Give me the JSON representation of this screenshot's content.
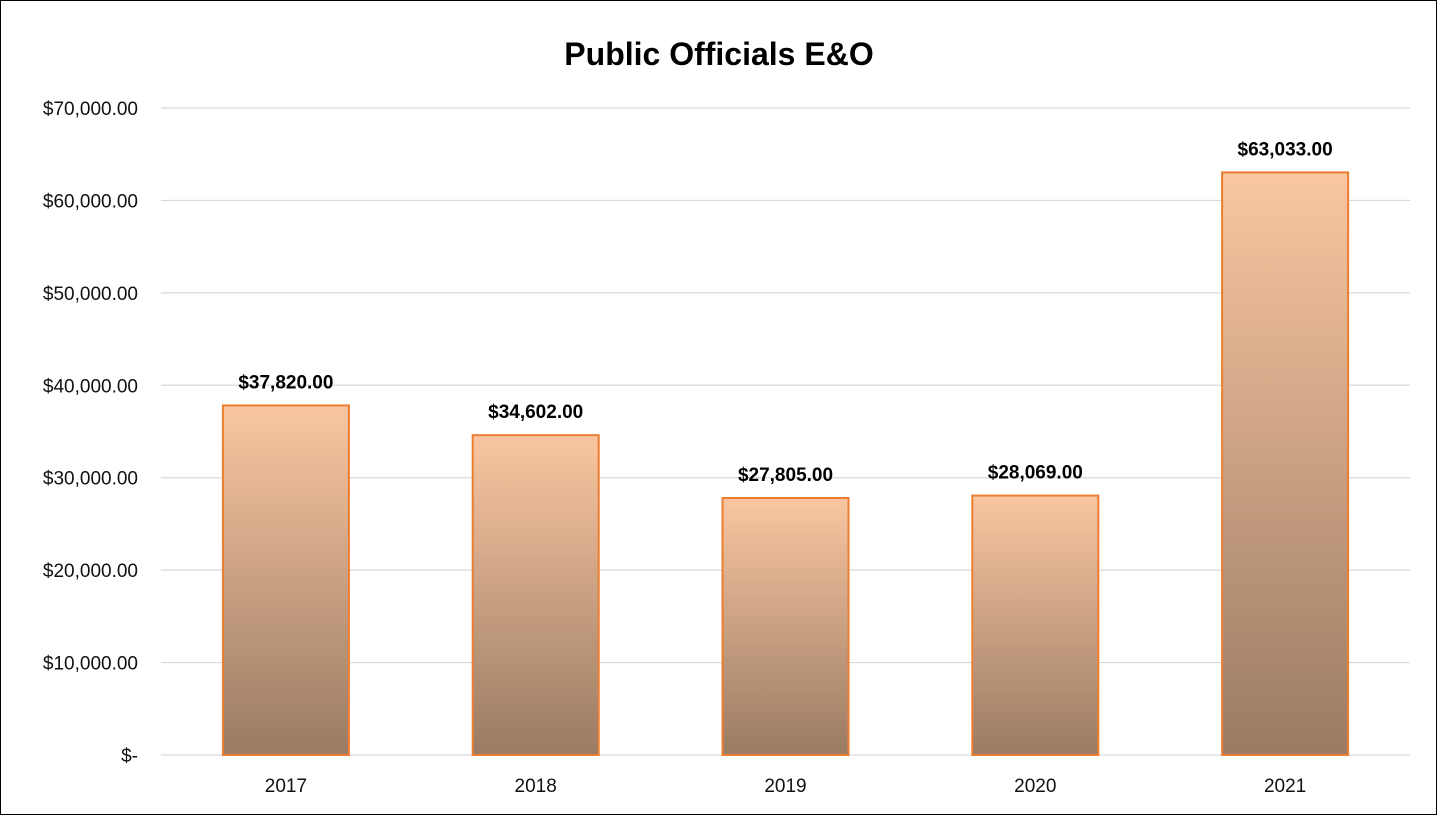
{
  "chart_data": {
    "type": "bar",
    "title": "Public Officials E&O",
    "xlabel": "",
    "ylabel": "",
    "categories": [
      "2017",
      "2018",
      "2019",
      "2020",
      "2021"
    ],
    "values": [
      37820,
      34602,
      27805,
      28069,
      63033
    ],
    "data_labels": [
      "$37,820.00",
      "$34,602.00",
      "$27,805.00",
      "$28,069.00",
      "$63,033.00"
    ],
    "ylim": [
      0,
      70000
    ],
    "y_ticks": [
      0,
      10000,
      20000,
      30000,
      40000,
      50000,
      60000,
      70000
    ],
    "y_tick_labels": [
      "$-",
      "$10,000.00",
      "$20,000.00",
      "$30,000.00",
      "$40,000.00",
      "$50,000.00",
      "$60,000.00",
      "$70,000.00"
    ],
    "grid": true,
    "legend": "none",
    "colors": {
      "bar_top": "#f9c6a1",
      "bar_bottom": "#9a7b63",
      "bar_border": "#ed7d31",
      "gridline": "#d9d9d9"
    }
  }
}
